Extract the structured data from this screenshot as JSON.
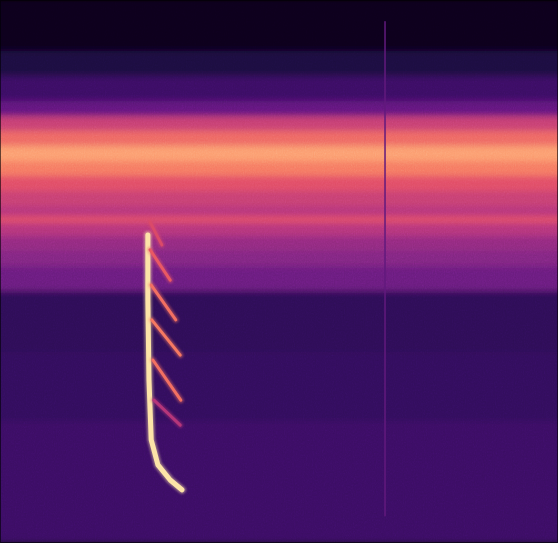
{
  "chart_data": {
    "type": "spectrogram",
    "tick_labels": false,
    "xlim": [
      0,
      100
    ],
    "ylim": [
      0,
      100
    ],
    "zlim": [
      0,
      1
    ],
    "bands": {
      "bins": [
        0,
        22.7,
        35.5,
        46.6,
        51.2,
        54.0,
        56.7,
        59.1,
        60.4,
        62.2,
        65.0,
        67.8,
        70.5,
        73.3,
        76.1,
        78.8,
        81.6,
        86.2,
        90.8,
        100
      ],
      "values": [
        0.2,
        0.18,
        0.17,
        0.32,
        0.38,
        0.42,
        0.5,
        0.62,
        0.5,
        0.55,
        0.62,
        0.72,
        0.8,
        0.68,
        0.55,
        0.3,
        0.2,
        0.12,
        0.05
      ]
    },
    "series": [
      {
        "x": [
          26.5,
          26.5,
          26.7,
          27.1,
          28.3,
          30.5,
          32.6
        ],
        "values": [
          56.7,
          44.8,
          30.0,
          19.0,
          14.4,
          11.6,
          9.8
        ],
        "intensity": 0.95
      },
      {
        "x": [
          26.9,
          29.0
        ],
        "values": [
          59.1,
          54.9
        ],
        "intensity": 0.6
      },
      {
        "x": [
          26.9,
          30.5
        ],
        "values": [
          54.0,
          48.4
        ],
        "intensity": 0.65
      },
      {
        "x": [
          27.1,
          31.5
        ],
        "values": [
          47.5,
          41.1
        ],
        "intensity": 0.7
      },
      {
        "x": [
          27.2,
          32.3
        ],
        "values": [
          41.1,
          34.6
        ],
        "intensity": 0.72
      },
      {
        "x": [
          27.4,
          32.4
        ],
        "values": [
          33.7,
          26.3
        ],
        "intensity": 0.7
      },
      {
        "x": [
          27.6,
          32.3
        ],
        "values": [
          26.3,
          21.7
        ],
        "intensity": 0.5
      },
      {
        "x": [
          69.0,
          69.0
        ],
        "values": [
          5.0,
          96.0
        ],
        "intensity": 0.3
      }
    ]
  }
}
